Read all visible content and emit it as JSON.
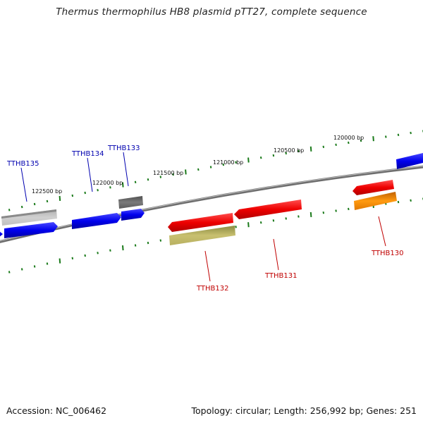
{
  "title": "Thermus thermophilus HB8 plasmid pTT27, complete sequence",
  "accession_text": "Accession: NC_006462",
  "summary_text": "Topology: circular; Length: 256,992 bp; Genes: 251",
  "colors": {
    "forward_label": "#0000b0",
    "reverse_label": "#c00000",
    "tick": "#1a7a1a",
    "backbone": "#808080"
  },
  "bp_labels": [
    "122500 bp",
    "122000 bp",
    "121500 bp",
    "121000 bp",
    "120500 bp",
    "120000 bp"
  ],
  "genes": [
    {
      "name": "TTHB135",
      "strand": "forward",
      "color": "blue"
    },
    {
      "name": "TTHB134",
      "strand": "forward",
      "color": "blue"
    },
    {
      "name": "TTHB133",
      "strand": "forward",
      "color": "blue"
    },
    {
      "name": "TTHB132",
      "strand": "reverse",
      "color": "khaki"
    },
    {
      "name": "TTHB131",
      "strand": "reverse",
      "color": "red"
    },
    {
      "name": "TTHB130",
      "strand": "reverse",
      "color": "orange"
    }
  ]
}
